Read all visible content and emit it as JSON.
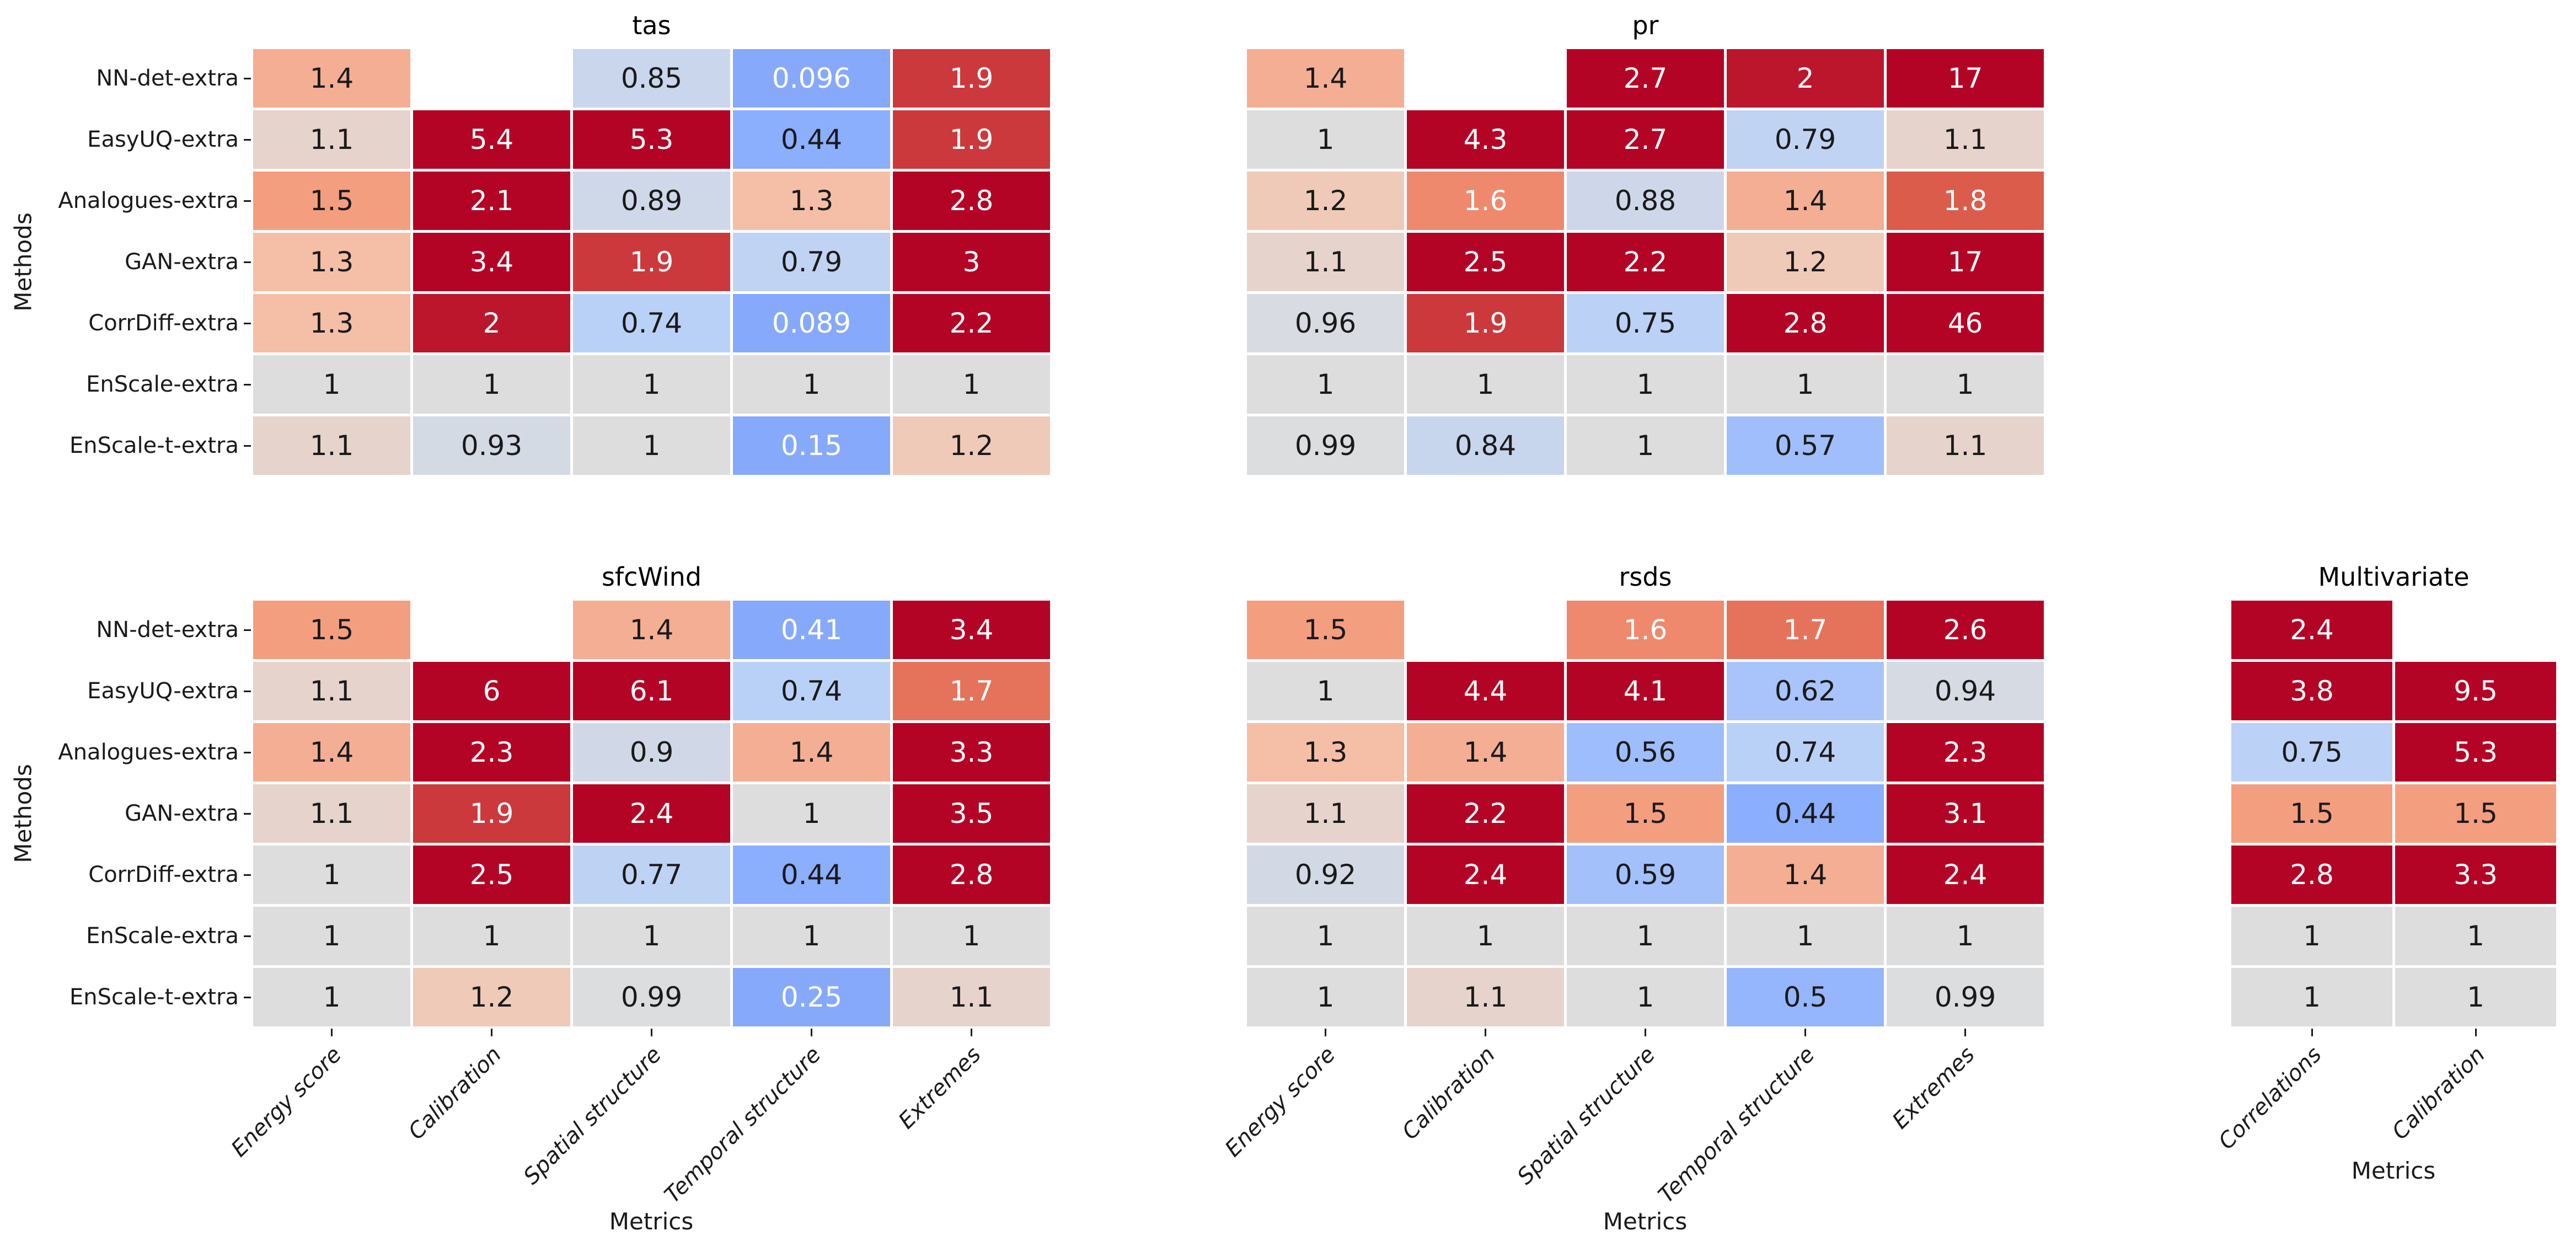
{
  "figure": {
    "background": "#ffffff",
    "colormap": "coolwarm",
    "colors": {
      "max_red": "#b40426",
      "center_gray": "#dddddd",
      "min_blue_clip": "#86a9fb",
      "annot_dark": "#1a1a1a",
      "annot_light": "#ffffff",
      "tick_color": "#1a1a1a"
    }
  },
  "axis_labels": {
    "x": "Metrics",
    "y": "Methods"
  },
  "methods": [
    "NN-det-extra",
    "EasyUQ-extra",
    "Analogues-extra",
    "GAN-extra",
    "CorrDiff-extra",
    "EnScale-extra",
    "EnScale-t-extra"
  ],
  "metrics_main": [
    "Energy score",
    "Calibration",
    "Spatial structure",
    "Temporal structure",
    "Extremes"
  ],
  "metrics_multivariate": [
    "Correlations",
    "Calibration"
  ],
  "chart_data": [
    {
      "type": "heatmap",
      "title": "tas",
      "rows": [
        "NN-det-extra",
        "EasyUQ-extra",
        "Analogues-extra",
        "GAN-extra",
        "CorrDiff-extra",
        "EnScale-extra",
        "EnScale-t-extra"
      ],
      "columns": [
        "Energy score",
        "Calibration",
        "Spatial structure",
        "Temporal structure",
        "Extremes"
      ],
      "values": [
        [
          1.4,
          null,
          0.85,
          0.096,
          1.9
        ],
        [
          1.1,
          5.4,
          5.3,
          0.44,
          1.9
        ],
        [
          1.5,
          2.1,
          0.89,
          1.3,
          2.8
        ],
        [
          1.3,
          3.4,
          1.9,
          0.79,
          3
        ],
        [
          1.3,
          2,
          0.74,
          0.089,
          2.2
        ],
        [
          1,
          1,
          1,
          1,
          1
        ],
        [
          1.1,
          0.93,
          1,
          0.15,
          1.2
        ]
      ]
    },
    {
      "type": "heatmap",
      "title": "pr",
      "rows": [
        "NN-det-extra",
        "EasyUQ-extra",
        "Analogues-extra",
        "GAN-extra",
        "CorrDiff-extra",
        "EnScale-extra",
        "EnScale-t-extra"
      ],
      "columns": [
        "Energy score",
        "Calibration",
        "Spatial structure",
        "Temporal structure",
        "Extremes"
      ],
      "values": [
        [
          1.4,
          null,
          2.7,
          2,
          17
        ],
        [
          1,
          4.3,
          2.7,
          0.79,
          1.1
        ],
        [
          1.2,
          1.6,
          0.88,
          1.4,
          1.8
        ],
        [
          1.1,
          2.5,
          2.2,
          1.2,
          17
        ],
        [
          0.96,
          1.9,
          0.75,
          2.8,
          46
        ],
        [
          1,
          1,
          1,
          1,
          1
        ],
        [
          0.99,
          0.84,
          1,
          0.57,
          1.1
        ]
      ]
    },
    {
      "type": "heatmap",
      "title": "sfcWind",
      "rows": [
        "NN-det-extra",
        "EasyUQ-extra",
        "Analogues-extra",
        "GAN-extra",
        "CorrDiff-extra",
        "EnScale-extra",
        "EnScale-t-extra"
      ],
      "columns": [
        "Energy score",
        "Calibration",
        "Spatial structure",
        "Temporal structure",
        "Extremes"
      ],
      "values": [
        [
          1.5,
          null,
          1.4,
          0.41,
          3.4
        ],
        [
          1.1,
          6,
          6.1,
          0.74,
          1.7
        ],
        [
          1.4,
          2.3,
          0.9,
          1.4,
          3.3
        ],
        [
          1.1,
          1.9,
          2.4,
          1,
          3.5
        ],
        [
          1,
          2.5,
          0.77,
          0.44,
          2.8
        ],
        [
          1,
          1,
          1,
          1,
          1
        ],
        [
          1,
          1.2,
          0.99,
          0.25,
          1.1
        ]
      ]
    },
    {
      "type": "heatmap",
      "title": "rsds",
      "rows": [
        "NN-det-extra",
        "EasyUQ-extra",
        "Analogues-extra",
        "GAN-extra",
        "CorrDiff-extra",
        "EnScale-extra",
        "EnScale-t-extra"
      ],
      "columns": [
        "Energy score",
        "Calibration",
        "Spatial structure",
        "Temporal structure",
        "Extremes"
      ],
      "values": [
        [
          1.5,
          null,
          1.6,
          1.7,
          2.6
        ],
        [
          1,
          4.4,
          4.1,
          0.62,
          0.94
        ],
        [
          1.3,
          1.4,
          0.56,
          0.74,
          2.3
        ],
        [
          1.1,
          2.2,
          1.5,
          0.44,
          3.1
        ],
        [
          0.92,
          2.4,
          0.59,
          1.4,
          2.4
        ],
        [
          1,
          1,
          1,
          1,
          1
        ],
        [
          1,
          1.1,
          1,
          0.5,
          0.99
        ]
      ]
    },
    {
      "type": "heatmap",
      "title": "Multivariate",
      "rows": [
        "NN-det-extra",
        "EasyUQ-extra",
        "Analogues-extra",
        "GAN-extra",
        "CorrDiff-extra",
        "EnScale-extra",
        "EnScale-t-extra"
      ],
      "columns": [
        "Correlations",
        "Calibration"
      ],
      "values": [
        [
          2.4,
          null
        ],
        [
          3.8,
          9.5
        ],
        [
          0.75,
          5.3
        ],
        [
          1.5,
          1.5
        ],
        [
          2.8,
          3.3
        ],
        [
          1,
          1
        ],
        [
          1,
          1
        ]
      ]
    }
  ]
}
